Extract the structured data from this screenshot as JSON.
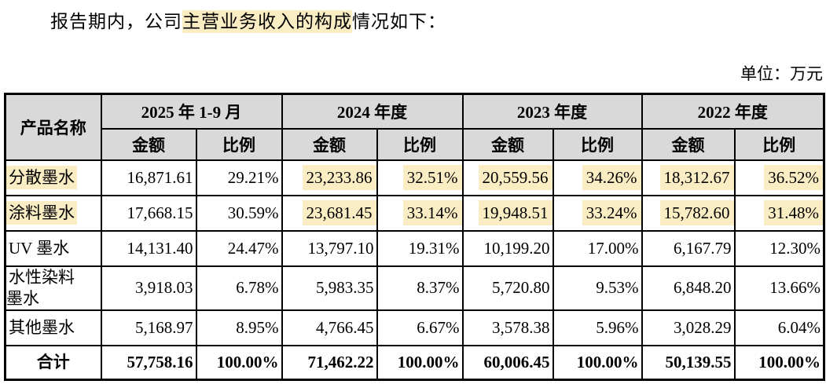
{
  "title": {
    "prefix": "报告期内，公司",
    "highlight": "主营业务收入的构成",
    "suffix": "情况如下："
  },
  "unit_label": "单位：万元",
  "colors": {
    "highlight": "#FAECC3",
    "header_bg": "#D9D9D9",
    "border": "#000000"
  },
  "table": {
    "product_header": "产品名称",
    "period_headers": [
      "2025 年 1-9 月",
      "2024 年度",
      "2023 年度",
      "2022 年度"
    ],
    "sub_headers": {
      "amount": "金额",
      "ratio": "比例"
    },
    "rows": [
      {
        "name": "分散墨水",
        "name_hl": true,
        "cells": [
          {
            "v": "16,871.61",
            "hl": false
          },
          {
            "v": "29.21%",
            "hl": false
          },
          {
            "v": "23,233.86",
            "hl": true
          },
          {
            "v": "32.51%",
            "hl": true
          },
          {
            "v": "20,559.56",
            "hl": true
          },
          {
            "v": "34.26%",
            "hl": true
          },
          {
            "v": "18,312.67",
            "hl": true
          },
          {
            "v": "36.52%",
            "hl": true
          }
        ]
      },
      {
        "name": "涂料墨水",
        "name_hl": true,
        "cells": [
          {
            "v": "17,668.15",
            "hl": false
          },
          {
            "v": "30.59%",
            "hl": false
          },
          {
            "v": "23,681.45",
            "hl": true
          },
          {
            "v": "33.14%",
            "hl": true
          },
          {
            "v": "19,948.51",
            "hl": true
          },
          {
            "v": "33.24%",
            "hl": true
          },
          {
            "v": "15,782.60",
            "hl": true
          },
          {
            "v": "31.48%",
            "hl": true
          }
        ]
      },
      {
        "name": "UV 墨水",
        "name_hl": false,
        "cells": [
          {
            "v": "14,131.40",
            "hl": false
          },
          {
            "v": "24.47%",
            "hl": false
          },
          {
            "v": "13,797.10",
            "hl": false
          },
          {
            "v": "19.31%",
            "hl": false
          },
          {
            "v": "10,199.20",
            "hl": false
          },
          {
            "v": "17.00%",
            "hl": false
          },
          {
            "v": "6,167.79",
            "hl": false
          },
          {
            "v": "12.30%",
            "hl": false
          }
        ]
      },
      {
        "name": "水性染料\n墨水",
        "name_hl": false,
        "cells": [
          {
            "v": "3,918.03",
            "hl": false
          },
          {
            "v": "6.78%",
            "hl": false
          },
          {
            "v": "5,983.35",
            "hl": false
          },
          {
            "v": "8.37%",
            "hl": false
          },
          {
            "v": "5,720.80",
            "hl": false
          },
          {
            "v": "9.53%",
            "hl": false
          },
          {
            "v": "6,848.20",
            "hl": false
          },
          {
            "v": "13.66%",
            "hl": false
          }
        ]
      },
      {
        "name": "其他墨水",
        "name_hl": false,
        "cells": [
          {
            "v": "5,168.97",
            "hl": false
          },
          {
            "v": "8.95%",
            "hl": false
          },
          {
            "v": "4,766.45",
            "hl": false
          },
          {
            "v": "6.67%",
            "hl": false
          },
          {
            "v": "3,578.38",
            "hl": false
          },
          {
            "v": "5.96%",
            "hl": false
          },
          {
            "v": "3,028.29",
            "hl": false
          },
          {
            "v": "6.04%",
            "hl": false
          }
        ]
      }
    ],
    "total_row": {
      "name": "合计",
      "cells": [
        "57,758.16",
        "100.00%",
        "71,462.22",
        "100.00%",
        "60,006.45",
        "100.00%",
        "50,139.55",
        "100.00%"
      ]
    }
  }
}
